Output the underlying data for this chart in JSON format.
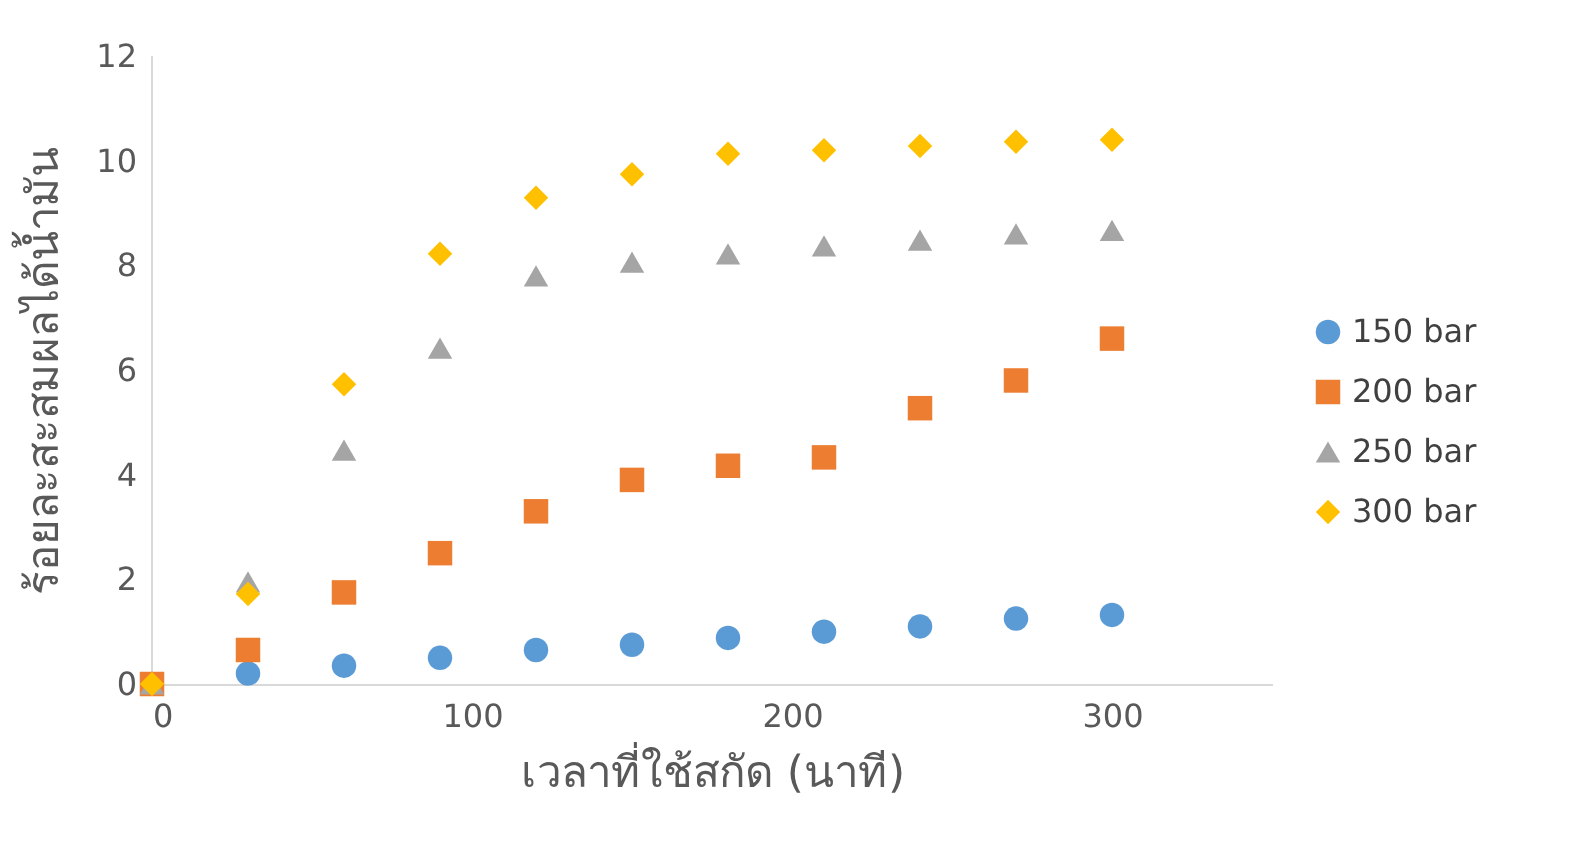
{
  "chart_data": {
    "type": "scatter",
    "xlabel": "เวลาที่ใช้สกัด (นาที)",
    "ylabel": "ร้อยละสะสมผลได้น้ำมัน",
    "x": [
      0,
      30,
      60,
      90,
      120,
      150,
      180,
      210,
      240,
      270,
      300
    ],
    "xlim": [
      0,
      350
    ],
    "xticks": [
      0,
      100,
      200,
      300
    ],
    "ylim": [
      0,
      12
    ],
    "yticks": [
      0,
      2,
      4,
      6,
      8,
      10,
      12
    ],
    "grid": false,
    "legend": "right",
    "series": [
      {
        "name": "150 bar",
        "color": "#5b9bd5",
        "marker": "circle",
        "values": [
          null,
          0.2,
          0.35,
          0.5,
          0.65,
          0.75,
          0.88,
          1.0,
          1.1,
          1.25,
          1.32
        ]
      },
      {
        "name": "200 bar",
        "color": "#ed7d31",
        "marker": "square",
        "values": [
          0,
          0.65,
          1.75,
          2.5,
          3.3,
          3.9,
          4.17,
          4.33,
          5.27,
          5.8,
          6.6
        ]
      },
      {
        "name": "250 bar",
        "color": "#a5a5a5",
        "marker": "triangle",
        "values": [
          0,
          1.95,
          4.47,
          6.42,
          7.8,
          8.06,
          8.22,
          8.37,
          8.48,
          8.6,
          8.67
        ]
      },
      {
        "name": "300 bar",
        "color": "#ffc000",
        "marker": "diamond",
        "values": [
          0,
          1.72,
          5.73,
          8.22,
          9.29,
          9.74,
          10.13,
          10.2,
          10.28,
          10.36,
          10.4
        ]
      }
    ]
  }
}
